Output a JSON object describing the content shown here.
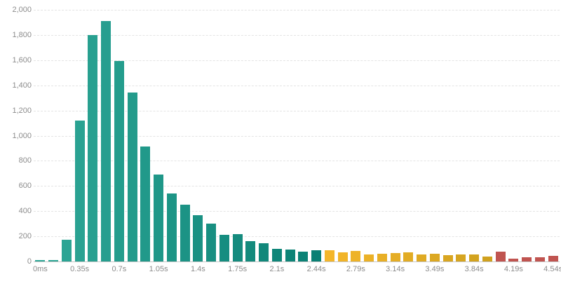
{
  "chart_data": {
    "type": "bar",
    "title": "",
    "xlabel": "",
    "ylabel": "",
    "x_tick_labels": [
      "0ms",
      "0.35s",
      "0.7s",
      "1.05s",
      "1.4s",
      "1.75s",
      "2.1s",
      "2.44s",
      "2.79s",
      "3.14s",
      "3.49s",
      "3.84s",
      "4.19s",
      "4.54s"
    ],
    "x_label_every_n_bars": 3,
    "values": [
      10,
      10,
      175,
      1120,
      1800,
      1910,
      1595,
      1345,
      915,
      690,
      540,
      450,
      370,
      300,
      210,
      215,
      160,
      145,
      100,
      95,
      80,
      90,
      90,
      75,
      83,
      58,
      62,
      68,
      74,
      58,
      62,
      48,
      53,
      53,
      40,
      77,
      25,
      35,
      32,
      44
    ],
    "ylim": [
      0,
      2000
    ],
    "y_tick_step": 200,
    "y_tick_labels": [
      "0",
      "200",
      "400",
      "600",
      "800",
      "1,000",
      "1,200",
      "1,400",
      "1,600",
      "1,800",
      "2,000"
    ],
    "grid": "horizontal-dashed",
    "legend": "none",
    "segments": [
      {
        "name": "good",
        "from_index": 0,
        "to_index": 21,
        "color_start": "#2fa897",
        "color_end": "#0a8074"
      },
      {
        "name": "needs-improvement",
        "from_index": 22,
        "to_index": 34,
        "color_start": "#f4b62a",
        "color_end": "#d0a11e"
      },
      {
        "name": "poor",
        "from_index": 35,
        "to_index": 39,
        "color_start": "#c05450",
        "color_end": "#c05450"
      }
    ],
    "colors": {
      "grid": "#e4e4e4",
      "axis_line": "#c9c9c9",
      "tick_text": "#8c8c8c",
      "background": "#ffffff"
    }
  }
}
